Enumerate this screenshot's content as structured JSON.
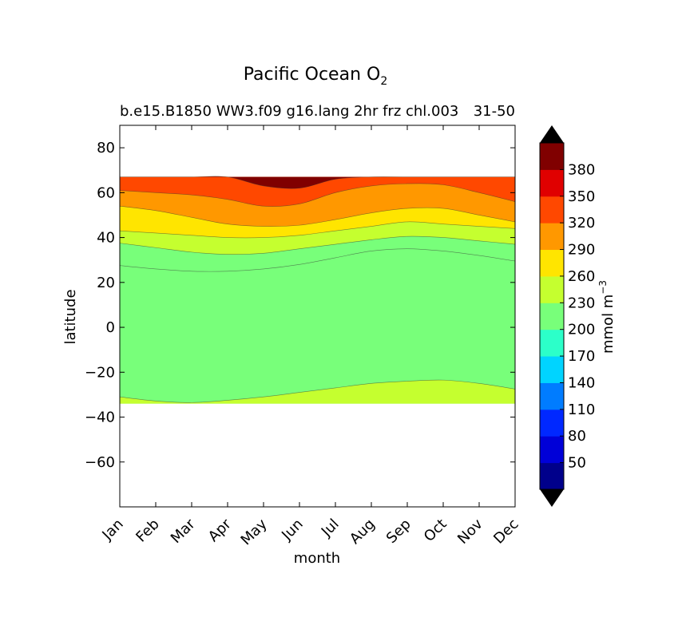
{
  "chart_data": {
    "type": "filled-contour",
    "title_main": "Pacific Ocean O",
    "title_subscript": "2",
    "subtitle_left": "b.e15.B1850 WW3.f09 g16.lang 2hr frz chl.003",
    "subtitle_right": "31-50",
    "xlabel": "month",
    "ylabel": "latitude",
    "x_categories": [
      "Jan",
      "Feb",
      "Mar",
      "Apr",
      "May",
      "Jun",
      "Jul",
      "Aug",
      "Sep",
      "Oct",
      "Nov",
      "Dec"
    ],
    "ylim": [
      -80,
      90
    ],
    "yticks": [
      80,
      60,
      40,
      20,
      0,
      -20,
      -40,
      -60
    ],
    "ytick_labels": [
      "80",
      "60",
      "40",
      "20",
      "0",
      "−20",
      "−40",
      "−60"
    ],
    "data_lat_range": [
      -34,
      67
    ],
    "contour_levels": [
      20,
      50,
      80,
      110,
      140,
      170,
      200,
      230,
      260,
      290,
      320,
      350,
      380,
      410
    ],
    "band_colors": [
      "#00008b",
      "#0000d8",
      "#0028ff",
      "#007cff",
      "#00d4ff",
      "#2cffc9",
      "#78ff7a",
      "#c5ff2f",
      "#ffe500",
      "#ff9800",
      "#ff4800",
      "#e00000",
      "#800000"
    ],
    "extend_low_color": "#000000",
    "extend_high_color": "#000000",
    "contours": [
      {
        "level": 200,
        "color": "#c5ff2f",
        "lat_by_month": [
          -31,
          -32.8,
          -33.5,
          -32.5,
          -31,
          -29,
          -27,
          -25,
          -24,
          -23.5,
          -25,
          -27.5
        ]
      },
      {
        "level": 230,
        "color": "#78ff7a",
        "lat_by_month": [
          27.5,
          26,
          25,
          25,
          26,
          28,
          31,
          34,
          35,
          34,
          32,
          29.5
        ]
      },
      {
        "level": 260,
        "color": "#c5ff2f",
        "lat_by_month": [
          37.5,
          35.5,
          33.5,
          32.5,
          33,
          35,
          37,
          39,
          40.5,
          40,
          38.5,
          37
        ]
      },
      {
        "level": 290,
        "color": "#ffe500",
        "lat_by_month": [
          43,
          42,
          41,
          40,
          40,
          41,
          43,
          45,
          47,
          46,
          45,
          44
        ]
      },
      {
        "level": 320,
        "color": "#ff9800",
        "lat_by_month": [
          54,
          52,
          49,
          46,
          45,
          45.5,
          48,
          51,
          53,
          53,
          50,
          47
        ]
      },
      {
        "level": 350,
        "color": "#ff4800",
        "lat_by_month": [
          61,
          60,
          59,
          57,
          54,
          55,
          60,
          63,
          64,
          63.5,
          60,
          56
        ]
      },
      {
        "level": 380,
        "color": "#800000",
        "lat_by_month": [
          67,
          67,
          67,
          67,
          63,
          62,
          66,
          67,
          67,
          67,
          67,
          67
        ]
      }
    ],
    "colorbar": {
      "label": "mmol m",
      "label_superscript": "−3",
      "tick_labels": [
        "380",
        "350",
        "320",
        "290",
        "260",
        "230",
        "200",
        "170",
        "140",
        "110",
        "80",
        "50"
      ],
      "tick_values": [
        380,
        350,
        320,
        290,
        260,
        230,
        200,
        170,
        140,
        110,
        80,
        50
      ]
    }
  }
}
